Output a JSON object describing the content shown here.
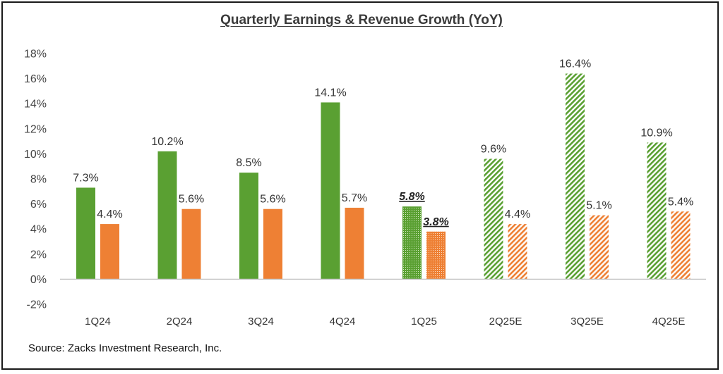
{
  "title": "Quarterly Earnings & Revenue Growth (YoY)",
  "source": "Source: Zacks Investment Research, Inc.",
  "colors": {
    "earnings": "#5aa032",
    "revenue": "#ee8034",
    "axis": "#bfbfbf"
  },
  "chart_data": {
    "type": "bar",
    "title": "Quarterly Earnings & Revenue Growth (YoY)",
    "categories": [
      "1Q24",
      "2Q24",
      "3Q24",
      "4Q24",
      "1Q25",
      "2Q25E",
      "3Q25E",
      "4Q25E"
    ],
    "series": [
      {
        "values": [
          7.3,
          10.2,
          8.5,
          14.1,
          5.8,
          9.6,
          16.4,
          10.9
        ],
        "labels": [
          "7.3%",
          "10.2%",
          "8.5%",
          "14.1%",
          "5.8%",
          "9.6%",
          "16.4%",
          "10.9%"
        ],
        "fill": [
          "solid",
          "solid",
          "solid",
          "solid",
          "dotted",
          "hatched",
          "hatched",
          "hatched"
        ]
      },
      {
        "values": [
          4.4,
          5.6,
          5.6,
          5.7,
          3.8,
          4.4,
          5.1,
          5.4
        ],
        "labels": [
          "4.4%",
          "5.6%",
          "5.6%",
          "5.7%",
          "3.8%",
          "4.4%",
          "5.1%",
          "5.4%"
        ],
        "fill": [
          "solid",
          "solid",
          "solid",
          "solid",
          "dotted",
          "hatched",
          "hatched",
          "hatched"
        ]
      }
    ],
    "highlighted_category": "1Q25",
    "ylim": [
      -2,
      18
    ],
    "yticks": [
      -2,
      0,
      2,
      4,
      6,
      8,
      10,
      12,
      14,
      16,
      18
    ],
    "ytick_labels": [
      "-2%",
      "0%",
      "2%",
      "4%",
      "6%",
      "8%",
      "10%",
      "12%",
      "14%",
      "16%",
      "18%"
    ],
    "grid": false,
    "legend": "none"
  }
}
